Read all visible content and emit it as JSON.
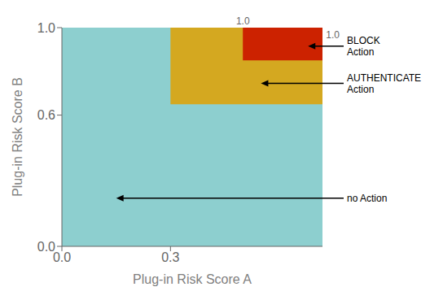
{
  "chart_data": {
    "type": "region",
    "xlabel": "Plug-in Risk Score A",
    "ylabel": "Plug-in Risk Score B",
    "xlim": [
      0.0,
      0.72
    ],
    "ylim": [
      0.0,
      1.0
    ],
    "xticks": [
      {
        "value": 0,
        "label": "0.0"
      },
      0.3
    ],
    "yticks": [
      {
        "value": 0,
        "label": "0.0"
      },
      0.6,
      {
        "value": 1,
        "label": "1.0"
      }
    ],
    "regions": [
      {
        "x": [
          0.0,
          0.72
        ],
        "y": [
          0.0,
          1.0
        ],
        "color": "#8DCFCF"
      },
      {
        "x": [
          0.3,
          0.72
        ],
        "y": [
          0.65,
          1.0
        ],
        "color": "#D4A820"
      },
      {
        "x": [
          0.5,
          0.72
        ],
        "y": [
          0.85,
          1.0
        ],
        "color": "#CC2200"
      }
    ],
    "annotations": [
      {
        "text": "BLOCK\nAction",
        "xy": [
          0.68,
          0.915
        ]
      },
      {
        "text": "AUTHENTICATE\nAction",
        "xy": [
          0.55,
          0.745
        ]
      },
      {
        "text": "no Action",
        "xy": [
          0.15,
          0.22
        ]
      }
    ],
    "texts": [
      {
        "text": "1.0",
        "x": 0.5,
        "y": 1.005
      },
      {
        "text": "1.0",
        "x": 0.725,
        "y": 0.965
      }
    ]
  }
}
